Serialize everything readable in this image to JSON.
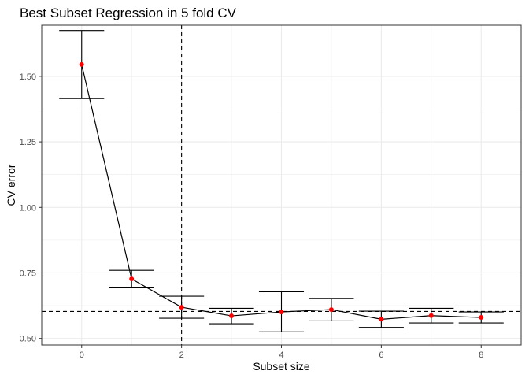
{
  "chart_data": {
    "type": "line",
    "title": "Best Subset Regression in 5 fold CV",
    "xlabel": "Subset size",
    "ylabel": "CV error",
    "xlim": [
      -0.8,
      8.8
    ],
    "ylim": [
      0.475,
      1.695
    ],
    "x_ticks": [
      0,
      2,
      4,
      6,
      8
    ],
    "y_ticks": [
      0.5,
      0.75,
      1.0,
      1.25,
      1.5
    ],
    "x_tick_labels": [
      "0",
      "2",
      "4",
      "6",
      "8"
    ],
    "y_tick_labels": [
      "0.50",
      "0.75",
      "1.00",
      "1.25",
      "1.50"
    ],
    "grid": true,
    "points": [
      {
        "x": 0,
        "y": 1.545,
        "ymin": 1.415,
        "ymax": 1.675
      },
      {
        "x": 1,
        "y": 0.727,
        "ymin": 0.693,
        "ymax": 0.76
      },
      {
        "x": 2,
        "y": 0.619,
        "ymin": 0.577,
        "ymax": 0.661
      },
      {
        "x": 3,
        "y": 0.586,
        "ymin": 0.556,
        "ymax": 0.615
      },
      {
        "x": 4,
        "y": 0.601,
        "ymin": 0.525,
        "ymax": 0.678
      },
      {
        "x": 5,
        "y": 0.61,
        "ymin": 0.567,
        "ymax": 0.653
      },
      {
        "x": 6,
        "y": 0.573,
        "ymin": 0.542,
        "ymax": 0.604
      },
      {
        "x": 7,
        "y": 0.587,
        "ymin": 0.559,
        "ymax": 0.615
      },
      {
        "x": 8,
        "y": 0.58,
        "ymin": 0.559,
        "ymax": 0.601
      }
    ],
    "reference_lines": {
      "vertical_x": 2,
      "horizontal_y": 0.603
    },
    "colors": {
      "point": "#ff0000",
      "line": "#000000",
      "grid": "#ebebeb",
      "border": "#333333"
    }
  }
}
